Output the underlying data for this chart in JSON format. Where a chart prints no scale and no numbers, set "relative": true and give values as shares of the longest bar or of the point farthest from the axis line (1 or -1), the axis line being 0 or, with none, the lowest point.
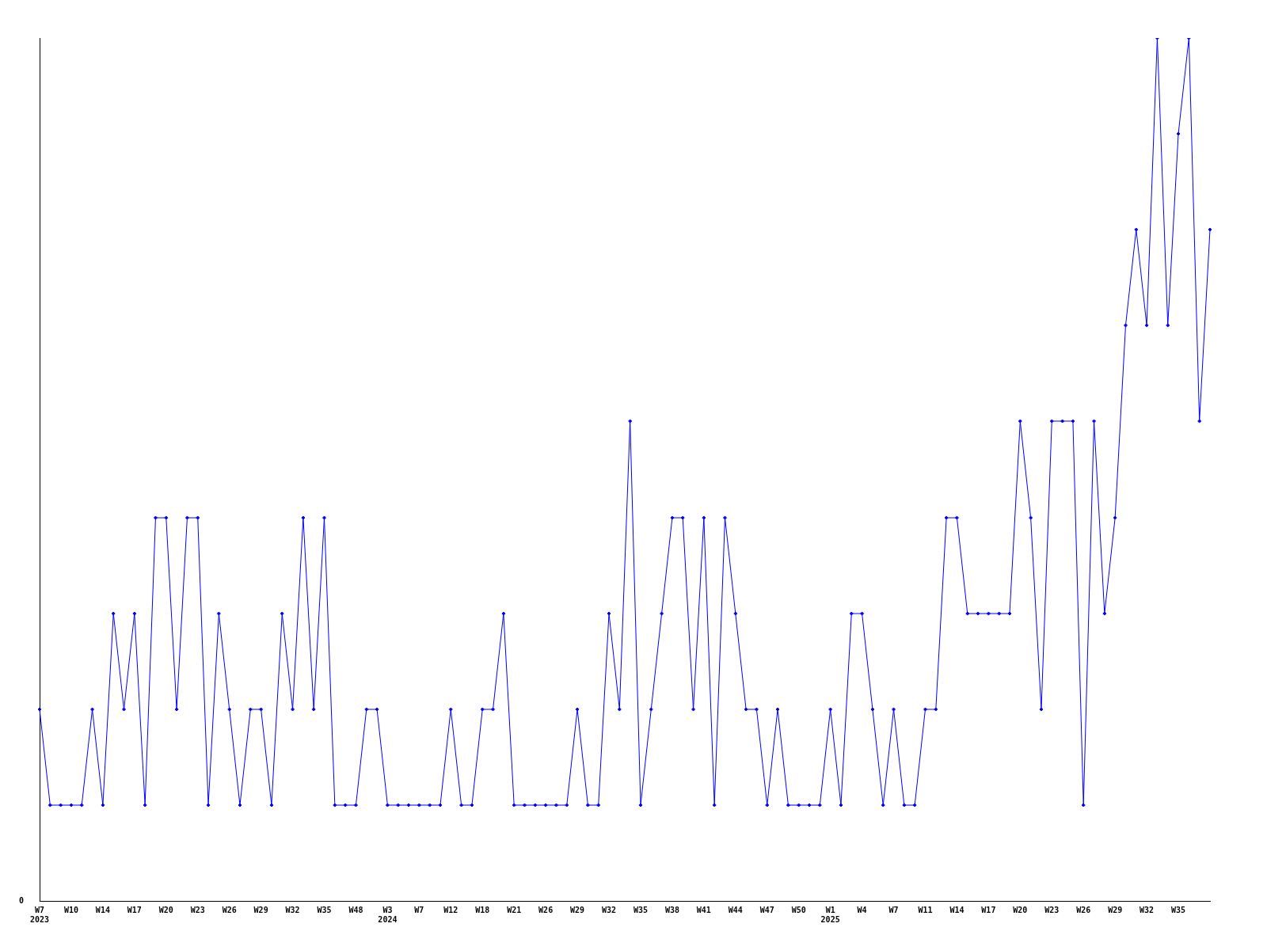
{
  "chart_data": {
    "type": "line",
    "relative": true,
    "marker": "diamond",
    "color": "#0000ff",
    "categories": [
      "W7 2023",
      null,
      null,
      "W10",
      null,
      null,
      "W14",
      null,
      null,
      "W17",
      null,
      null,
      "W20",
      null,
      null,
      "W23",
      null,
      null,
      "W26",
      null,
      null,
      "W29",
      null,
      null,
      "W32",
      null,
      null,
      "W35",
      null,
      null,
      "W48",
      null,
      null,
      "W3 2024",
      null,
      null,
      "W7",
      null,
      null,
      "W12",
      null,
      null,
      "W18",
      null,
      null,
      "W21",
      null,
      null,
      "W26",
      null,
      null,
      "W29",
      null,
      null,
      "W32",
      null,
      null,
      "W35",
      null,
      null,
      "W38",
      null,
      null,
      "W41",
      null,
      null,
      "W44",
      null,
      null,
      "W47",
      null,
      null,
      "W50",
      null,
      null,
      "W1 2025",
      null,
      null,
      "W4",
      null,
      null,
      "W7",
      null,
      null,
      "W11",
      null,
      null,
      "W14",
      null,
      null,
      "W17",
      null,
      null,
      "W20",
      null,
      null,
      "W23",
      null,
      null,
      "W26",
      null,
      null,
      "W29",
      null,
      null,
      "W32",
      null,
      null,
      "W35",
      null,
      null,
      null
    ],
    "values": [
      0.222,
      0.111,
      0.111,
      0.111,
      0.111,
      0.222,
      0.111,
      0.333,
      0.222,
      0.333,
      0.111,
      0.444,
      0.444,
      0.222,
      0.444,
      0.444,
      0.111,
      0.333,
      0.222,
      0.111,
      0.222,
      0.222,
      0.111,
      0.333,
      0.222,
      0.444,
      0.222,
      0.444,
      0.111,
      0.111,
      0.111,
      0.222,
      0.222,
      0.111,
      0.111,
      0.111,
      0.111,
      0.111,
      0.111,
      0.222,
      0.111,
      0.111,
      0.222,
      0.222,
      0.333,
      0.111,
      0.111,
      0.111,
      0.111,
      0.111,
      0.111,
      0.222,
      0.111,
      0.111,
      0.333,
      0.222,
      0.556,
      0.111,
      0.222,
      0.333,
      0.444,
      0.444,
      0.222,
      0.444,
      0.111,
      0.444,
      0.333,
      0.222,
      0.222,
      0.111,
      0.222,
      0.111,
      0.111,
      0.111,
      0.111,
      0.222,
      0.111,
      0.333,
      0.333,
      0.222,
      0.111,
      0.222,
      0.111,
      0.111,
      0.222,
      0.222,
      0.444,
      0.444,
      0.333,
      0.333,
      0.333,
      0.333,
      0.333,
      0.556,
      0.444,
      0.222,
      0.556,
      0.556,
      0.556,
      0.111,
      0.556,
      0.333,
      0.444,
      0.667,
      0.778,
      0.667,
      1,
      0.667,
      0.889,
      1,
      0.556,
      0.778
    ],
    "annotations": [
      "0"
    ]
  }
}
